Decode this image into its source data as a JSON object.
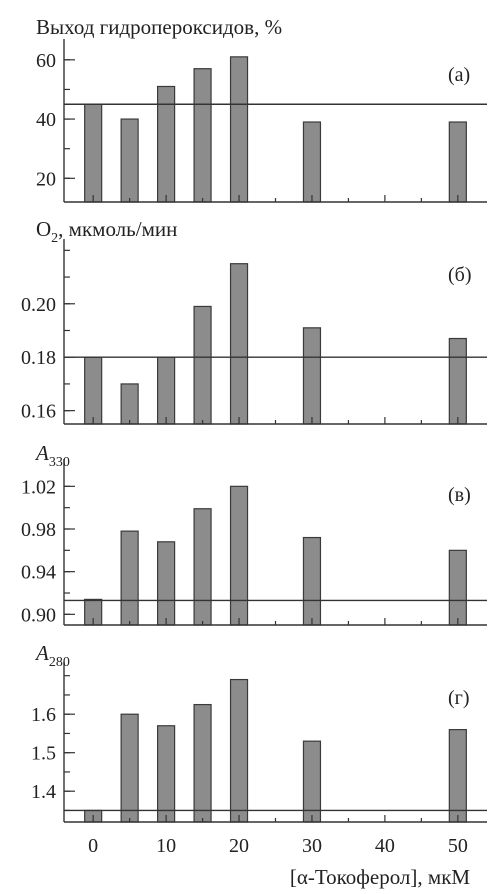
{
  "chart_data": [
    {
      "type": "bar",
      "panel_label": "(а)",
      "ylabel": "Выход гидропероксидов, %",
      "x": [
        0,
        5,
        10,
        15,
        20,
        30,
        50
      ],
      "values": [
        45,
        40,
        51,
        57,
        61,
        39,
        39
      ],
      "baseline": 45,
      "ylim": [
        12,
        65
      ],
      "yticks": [
        20,
        40,
        60
      ],
      "ytick_labels": [
        "20",
        "40",
        "60"
      ]
    },
    {
      "type": "bar",
      "panel_label": "(б)",
      "ylabel": "O2, мкмоль/мин",
      "x": [
        0,
        5,
        10,
        15,
        20,
        30,
        50
      ],
      "values": [
        0.18,
        0.17,
        0.18,
        0.199,
        0.215,
        0.191,
        0.187
      ],
      "baseline": 0.18,
      "ylim": [
        0.155,
        0.222
      ],
      "yticks": [
        0.16,
        0.18,
        0.2
      ],
      "ytick_labels": [
        "0.16",
        "0.18",
        "0.20"
      ]
    },
    {
      "type": "bar",
      "panel_label": "(в)",
      "ylabel": "A330",
      "x": [
        0,
        5,
        10,
        15,
        20,
        30,
        50
      ],
      "values": [
        0.914,
        0.978,
        0.968,
        0.999,
        1.02,
        0.972,
        0.96
      ],
      "baseline": 0.913,
      "ylim": [
        0.89,
        1.04
      ],
      "yticks": [
        0.9,
        0.94,
        0.98,
        1.02
      ],
      "ytick_labels": [
        "0.90",
        "0.94",
        "0.98",
        "1.02"
      ]
    },
    {
      "type": "bar",
      "panel_label": "(г)",
      "ylabel": "A280",
      "x": [
        0,
        5,
        10,
        15,
        20,
        30,
        50
      ],
      "values": [
        1.35,
        1.6,
        1.57,
        1.625,
        1.69,
        1.53,
        1.56
      ],
      "baseline": 1.35,
      "ylim": [
        1.32,
        1.72
      ],
      "yticks": [
        1.4,
        1.5,
        1.6
      ],
      "ytick_labels": [
        "1.4",
        "1.5",
        "1.6"
      ]
    }
  ],
  "x_axis": {
    "ticks": [
      0,
      10,
      20,
      30,
      40,
      50
    ],
    "tick_labels": [
      "0",
      "10",
      "20",
      "30",
      "40",
      "50"
    ],
    "xlim": [
      -4,
      54
    ],
    "label": "[α-Токоферол], мкМ"
  }
}
